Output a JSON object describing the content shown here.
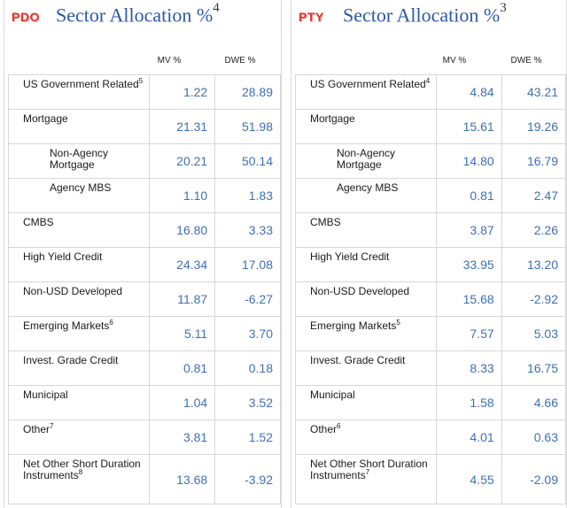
{
  "panels": [
    {
      "badge": "PDO",
      "title": "Sector Allocation %",
      "title_note": "4",
      "col_mv": "MV %",
      "col_dwe": "DWE %",
      "rows": [
        {
          "label": "US Government Related",
          "note": "5",
          "mv": "1.22",
          "dwe": "28.89"
        },
        {
          "label": "Mortgage",
          "mv": "21.31",
          "dwe": "51.98"
        },
        {
          "label": "Non-Agency Mortgage",
          "indent": true,
          "mv": "20.21",
          "dwe": "50.14"
        },
        {
          "label": "Agency MBS",
          "indent": true,
          "mv": "1.10",
          "dwe": "1.83"
        },
        {
          "label": "CMBS",
          "mv": "16.80",
          "dwe": "3.33"
        },
        {
          "label": "High Yield Credit",
          "mv": "24.34",
          "dwe": "17.08"
        },
        {
          "label": "Non-USD Developed",
          "mv": "11.87",
          "dwe": "-6.27"
        },
        {
          "label": "Emerging Markets",
          "note": "6",
          "mv": "5.11",
          "dwe": "3.70"
        },
        {
          "label": "Invest. Grade Credit",
          "mv": "0.81",
          "dwe": "0.18"
        },
        {
          "label": "Municipal",
          "mv": "1.04",
          "dwe": "3.52"
        },
        {
          "label": "Other",
          "note": "7",
          "mv": "3.81",
          "dwe": "1.52"
        },
        {
          "label": "Net Other Short Duration Instruments",
          "note": "8",
          "mv": "13.68",
          "dwe": "-3.92"
        }
      ]
    },
    {
      "badge": "PTY",
      "title": "Sector Allocation %",
      "title_note": "3",
      "col_mv": "MV %",
      "col_dwe": "DWE %",
      "rows": [
        {
          "label": "US Government Related",
          "note": "4",
          "mv": "4.84",
          "dwe": "43.21"
        },
        {
          "label": "Mortgage",
          "mv": "15.61",
          "dwe": "19.26"
        },
        {
          "label": "Non-Agency Mortgage",
          "indent": true,
          "mv": "14.80",
          "dwe": "16.79"
        },
        {
          "label": "Agency MBS",
          "indent": true,
          "mv": "0.81",
          "dwe": "2.47"
        },
        {
          "label": "CMBS",
          "mv": "3.87",
          "dwe": "2.26"
        },
        {
          "label": "High Yield Credit",
          "mv": "33.95",
          "dwe": "13.20"
        },
        {
          "label": "Non-USD Developed",
          "mv": "15.68",
          "dwe": "-2.92"
        },
        {
          "label": "Emerging Markets",
          "note": "5",
          "mv": "7.57",
          "dwe": "5.03"
        },
        {
          "label": "Invest. Grade Credit",
          "mv": "8.33",
          "dwe": "16.75"
        },
        {
          "label": "Municipal",
          "mv": "1.58",
          "dwe": "4.66"
        },
        {
          "label": "Other",
          "note": "6",
          "mv": "4.01",
          "dwe": "0.63"
        },
        {
          "label": "Net Other Short Duration Instruments",
          "note": "7",
          "mv": "4.55",
          "dwe": "-2.09"
        }
      ]
    }
  ],
  "colors": {
    "title": "#2b57a8",
    "values": "#3f6fb5",
    "badge": "#e4312b"
  }
}
